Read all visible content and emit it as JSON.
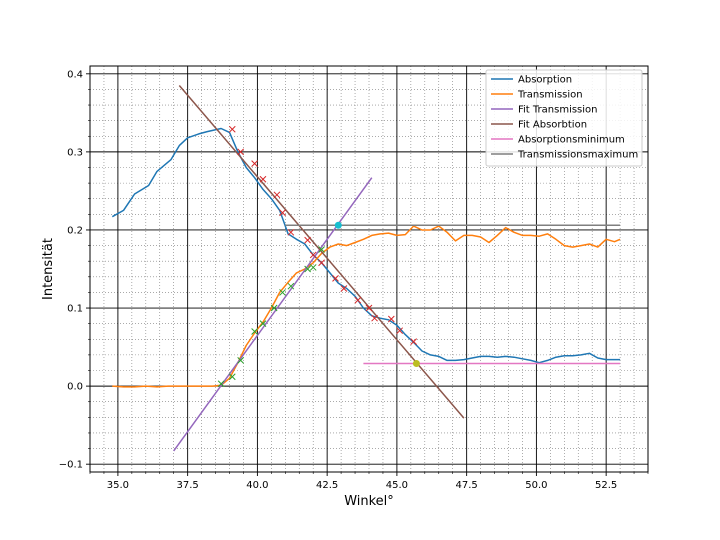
{
  "chart_data": {
    "type": "line",
    "xlabel": "Winkel°",
    "ylabel": "Intensität",
    "xlim": [
      34.0,
      54.0
    ],
    "ylim": [
      -0.11,
      0.41
    ],
    "x_ticks": [
      35.0,
      37.5,
      40.0,
      42.5,
      45.0,
      47.5,
      50.0,
      52.5
    ],
    "x_tick_labels": [
      "35.0",
      "37.5",
      "40.0",
      "42.5",
      "45.0",
      "47.5",
      "50.0",
      "52.5"
    ],
    "y_ticks": [
      -0.1,
      0.0,
      0.1,
      0.2,
      0.3,
      0.4
    ],
    "y_tick_labels": [
      "−0.1",
      "0.0",
      "0.1",
      "0.2",
      "0.3",
      "0.4"
    ],
    "grid": "major solid, minor dotted",
    "legend_position": "top-right",
    "series": [
      {
        "name": "Absorption",
        "color": "#1f77b4",
        "style": "line",
        "x": [
          34.8,
          35.2,
          35.6,
          36.1,
          36.4,
          36.9,
          37.2,
          37.5,
          37.9,
          38.2,
          38.7,
          39.0,
          39.3,
          39.6,
          39.9,
          40.2,
          40.5,
          40.8,
          41.1,
          41.4,
          41.7,
          42.0,
          42.3,
          42.6,
          42.9,
          43.2,
          43.5,
          43.8,
          44.1,
          44.4,
          44.7,
          45.0,
          45.3,
          45.6,
          45.9,
          46.2,
          46.5,
          46.8,
          47.1,
          47.4,
          47.7,
          48.0,
          48.3,
          48.6,
          48.9,
          49.2,
          49.5,
          49.8,
          50.1,
          50.4,
          50.7,
          51.0,
          51.3,
          51.6,
          51.9,
          52.2,
          52.5,
          52.8,
          53.0
        ],
        "y": [
          0.217,
          0.225,
          0.246,
          0.257,
          0.275,
          0.29,
          0.308,
          0.318,
          0.323,
          0.326,
          0.33,
          0.325,
          0.3,
          0.28,
          0.267,
          0.252,
          0.24,
          0.225,
          0.195,
          0.188,
          0.182,
          0.168,
          0.158,
          0.145,
          0.132,
          0.125,
          0.115,
          0.1,
          0.09,
          0.087,
          0.085,
          0.078,
          0.066,
          0.056,
          0.045,
          0.04,
          0.038,
          0.033,
          0.033,
          0.034,
          0.036,
          0.038,
          0.038,
          0.037,
          0.038,
          0.037,
          0.035,
          0.033,
          0.03,
          0.033,
          0.037,
          0.039,
          0.039,
          0.04,
          0.042,
          0.036,
          0.034,
          0.034,
          0.034
        ]
      },
      {
        "name": "Transmission",
        "color": "#ff7f0e",
        "style": "line",
        "x": [
          34.8,
          35.2,
          35.6,
          36.0,
          36.4,
          36.8,
          37.2,
          37.6,
          38.0,
          38.4,
          38.7,
          39.0,
          39.3,
          39.6,
          39.9,
          40.2,
          40.5,
          40.8,
          41.1,
          41.4,
          41.7,
          42.0,
          42.3,
          42.6,
          42.9,
          43.2,
          43.5,
          43.8,
          44.1,
          44.4,
          44.7,
          45.0,
          45.3,
          45.6,
          45.9,
          46.2,
          46.5,
          46.8,
          47.1,
          47.4,
          47.7,
          48.0,
          48.3,
          48.6,
          48.9,
          49.2,
          49.5,
          49.8,
          50.1,
          50.4,
          50.7,
          51.0,
          51.3,
          51.6,
          51.9,
          52.2,
          52.5,
          52.8,
          53.0
        ],
        "y": [
          0.0,
          -0.001,
          -0.001,
          0.0,
          -0.001,
          0.0,
          0.0,
          0.0,
          0.0,
          0.0,
          0.001,
          0.01,
          0.03,
          0.052,
          0.068,
          0.082,
          0.1,
          0.12,
          0.133,
          0.145,
          0.15,
          0.158,
          0.17,
          0.178,
          0.182,
          0.18,
          0.184,
          0.188,
          0.193,
          0.195,
          0.196,
          0.193,
          0.194,
          0.205,
          0.2,
          0.2,
          0.205,
          0.197,
          0.186,
          0.193,
          0.193,
          0.191,
          0.184,
          0.193,
          0.203,
          0.197,
          0.193,
          0.193,
          0.192,
          0.195,
          0.188,
          0.18,
          0.178,
          0.18,
          0.182,
          0.178,
          0.188,
          0.185,
          0.188
        ]
      },
      {
        "name": "Fit Transmission",
        "color": "#9467bd",
        "style": "line",
        "x": [
          37.0,
          44.1
        ],
        "y": [
          -0.083,
          0.267
        ]
      },
      {
        "name": "Fit Absorbtion",
        "color": "#8c564b",
        "style": "line",
        "x": [
          37.2,
          47.4
        ],
        "y": [
          0.385,
          -0.041
        ]
      },
      {
        "name": "Absorptionsminimum",
        "color": "#e377c2",
        "style": "line",
        "x": [
          43.8,
          53.0
        ],
        "y": [
          0.029,
          0.029
        ]
      },
      {
        "name": "Transmissionsmaximum",
        "color": "#7f7f7f",
        "style": "line",
        "x": [
          41.0,
          53.0
        ],
        "y": [
          0.206,
          0.206
        ]
      }
    ],
    "markers": [
      {
        "color": "#d62728",
        "symbol": "x",
        "x": [
          39.1,
          39.4,
          39.9,
          40.2,
          40.7,
          40.9,
          41.2,
          41.8,
          42.0,
          42.3,
          42.8,
          43.1,
          43.6,
          44.0,
          44.2,
          44.8,
          45.1,
          45.6
        ],
        "y": [
          0.329,
          0.3,
          0.285,
          0.265,
          0.245,
          0.222,
          0.197,
          0.187,
          0.168,
          0.158,
          0.138,
          0.125,
          0.11,
          0.1,
          0.087,
          0.086,
          0.071,
          0.057
        ]
      },
      {
        "color": "#2ca02c",
        "symbol": "x",
        "x": [
          38.7,
          39.1,
          39.4,
          39.9,
          40.2,
          40.6,
          40.9,
          41.2,
          41.8,
          42.0,
          42.3
        ],
        "y": [
          0.003,
          0.012,
          0.033,
          0.07,
          0.08,
          0.1,
          0.12,
          0.128,
          0.15,
          0.152,
          0.175
        ]
      },
      {
        "color": "#17becf",
        "symbol": "dot",
        "x": [
          42.9
        ],
        "y": [
          0.206
        ]
      },
      {
        "color": "#bcbd22",
        "symbol": "dot",
        "x": [
          45.7
        ],
        "y": [
          0.029
        ]
      }
    ]
  }
}
